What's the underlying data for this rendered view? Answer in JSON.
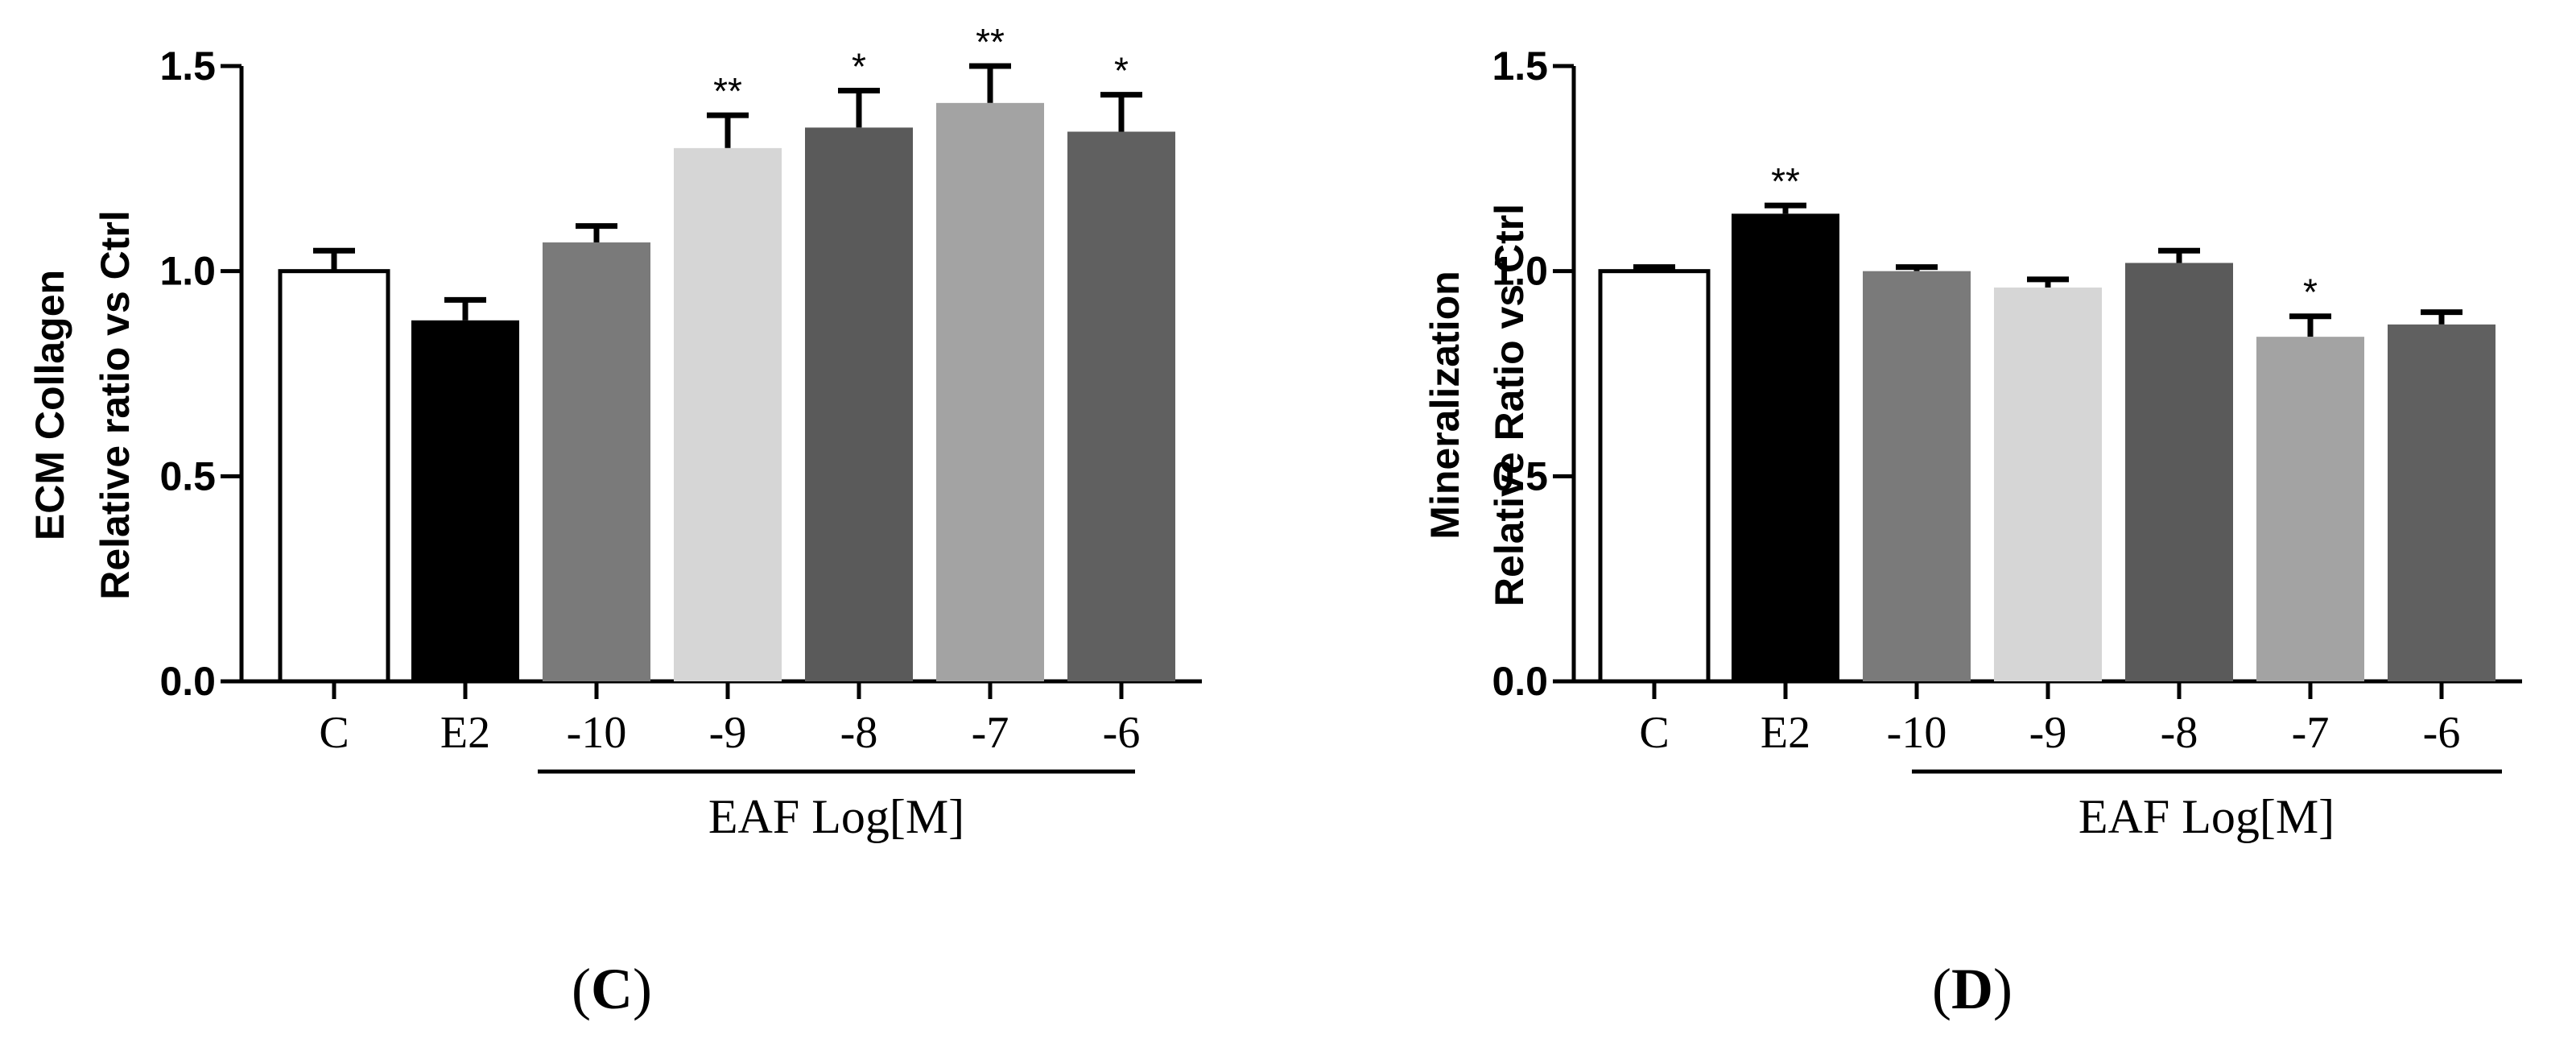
{
  "chart_data": [
    {
      "type": "bar",
      "panel": "C",
      "panel_label": {
        "open": "(",
        "letter": "C",
        "close": ")"
      },
      "ylabel": [
        "ECM Collagen",
        "Relative ratio vs Ctrl"
      ],
      "xlabel": "",
      "ylim": [
        0,
        1.5
      ],
      "yticks": [
        "0.0",
        "0.5",
        "1.0",
        "1.5"
      ],
      "ytick_values": [
        0,
        0.5,
        1.0,
        1.5
      ],
      "categories": [
        "C",
        "E2",
        "-10",
        "-9",
        "-8",
        "-7",
        "-6"
      ],
      "values": [
        1.0,
        0.88,
        1.07,
        1.3,
        1.35,
        1.41,
        1.34
      ],
      "errors": [
        0.05,
        0.05,
        0.04,
        0.08,
        0.09,
        0.09,
        0.09
      ],
      "significance": [
        "",
        "",
        "",
        "**",
        "*",
        "**",
        "*"
      ],
      "colors": [
        "#ffffff",
        "#000000",
        "#7a7a7a",
        "#d6d6d6",
        "#5a5a5a",
        "#a3a3a3",
        "#606060"
      ],
      "group_label": "EAF Log[M]",
      "group_range": [
        2,
        6
      ]
    },
    {
      "type": "bar",
      "panel": "D",
      "panel_label": {
        "open": "(",
        "letter": "D",
        "close": ")"
      },
      "ylabel": [
        "Mineralization",
        "Relative Ratio vs Ctrl"
      ],
      "xlabel": "",
      "ylim": [
        0,
        1.5
      ],
      "yticks": [
        "0.0",
        "0.5",
        "1.0",
        "1.5"
      ],
      "ytick_values": [
        0,
        0.5,
        1.0,
        1.5
      ],
      "categories": [
        "C",
        "E2",
        "-10",
        "-9",
        "-8",
        "-7",
        "-6"
      ],
      "values": [
        1.0,
        1.14,
        1.0,
        0.96,
        1.02,
        0.84,
        0.87
      ],
      "errors": [
        0.01,
        0.02,
        0.01,
        0.02,
        0.03,
        0.05,
        0.03
      ],
      "significance": [
        "",
        "**",
        "",
        "",
        "",
        "*",
        ""
      ],
      "colors": [
        "#ffffff",
        "#000000",
        "#7a7a7a",
        "#d6d6d6",
        "#5a5a5a",
        "#a3a3a3",
        "#606060"
      ],
      "group_label": "EAF Log[M]",
      "group_range": [
        2,
        6
      ]
    }
  ]
}
